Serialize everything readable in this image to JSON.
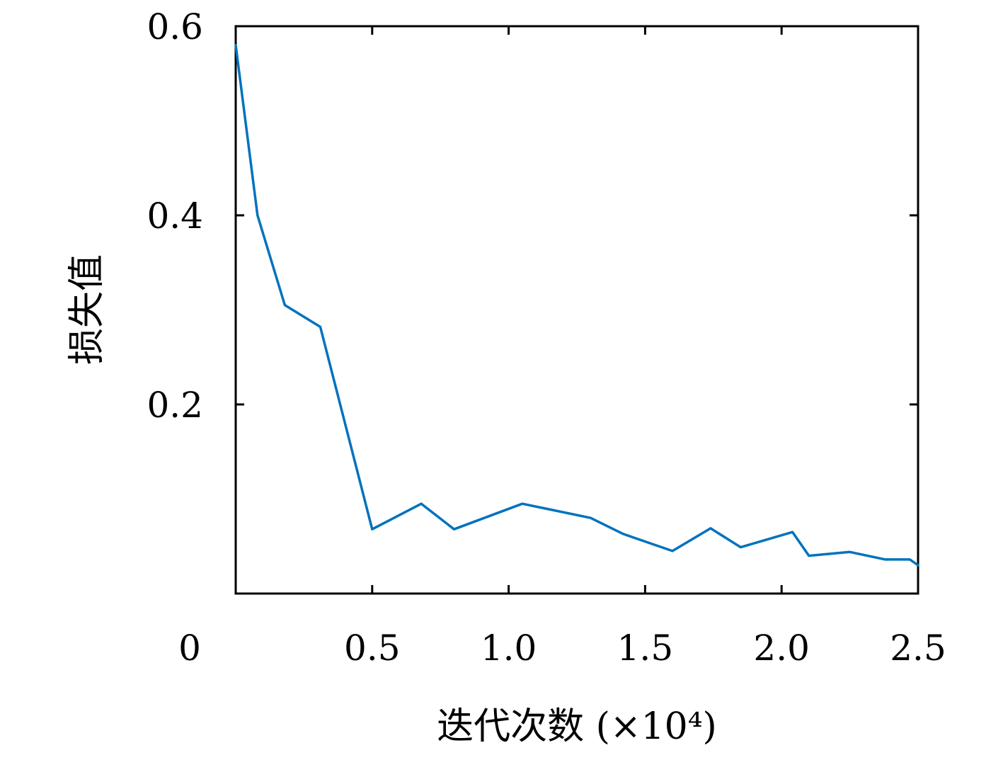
{
  "chart_data": {
    "type": "line",
    "title": "",
    "xlabel": "迭代次数 (×10⁴)",
    "ylabel": "损失值",
    "xlim": [
      0,
      2.5
    ],
    "ylim": [
      0,
      0.6
    ],
    "x_ticks": [
      "0",
      "0.5",
      "1.0",
      "1.5",
      "2.0",
      "2.5"
    ],
    "y_ticks": [
      "0.2",
      "0.4",
      "0.6"
    ],
    "grid": false,
    "legend": "none",
    "series": [
      {
        "color": "#0072BD",
        "x": [
          0,
          0.08,
          0.18,
          0.31,
          0.5,
          0.68,
          0.8,
          1.05,
          1.3,
          1.42,
          1.6,
          1.74,
          1.85,
          2.04,
          2.1,
          2.25,
          2.38,
          2.47,
          2.5
        ],
        "y": [
          0.58,
          0.4,
          0.305,
          0.282,
          0.068,
          0.095,
          0.068,
          0.095,
          0.08,
          0.063,
          0.045,
          0.069,
          0.049,
          0.065,
          0.04,
          0.044,
          0.036,
          0.036,
          0.03
        ]
      }
    ]
  }
}
